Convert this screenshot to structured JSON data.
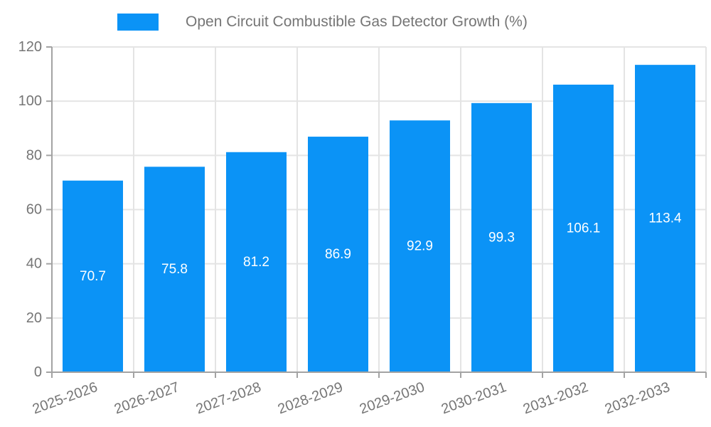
{
  "chart_data": {
    "type": "bar",
    "title": "Open Circuit Combustible Gas Detector Growth (%)",
    "categories": [
      "2025-2026",
      "2026-2027",
      "2027-2028",
      "2028-2029",
      "2029-2030",
      "2030-2031",
      "2031-2032",
      "2032-2033"
    ],
    "values": [
      70.7,
      75.8,
      81.2,
      86.9,
      92.9,
      99.3,
      106.1,
      113.4
    ],
    "value_labels": [
      "70.7",
      "75.8",
      "81.2",
      "86.9",
      "92.9",
      "99.3",
      "106.1",
      "113.4"
    ],
    "xlabel": "",
    "ylabel": "",
    "ylim": [
      0,
      120
    ],
    "yticks": [
      0,
      20,
      40,
      60,
      80,
      100,
      120
    ],
    "grid": true,
    "legend_position": "top",
    "xtick_rotation": -20,
    "colors": {
      "bar": "#0b93f6",
      "value_label": "#ffffff",
      "axis_text": "#757575",
      "grid_line": "#e4e4e4",
      "axis_line": "#a3a3a3"
    }
  }
}
